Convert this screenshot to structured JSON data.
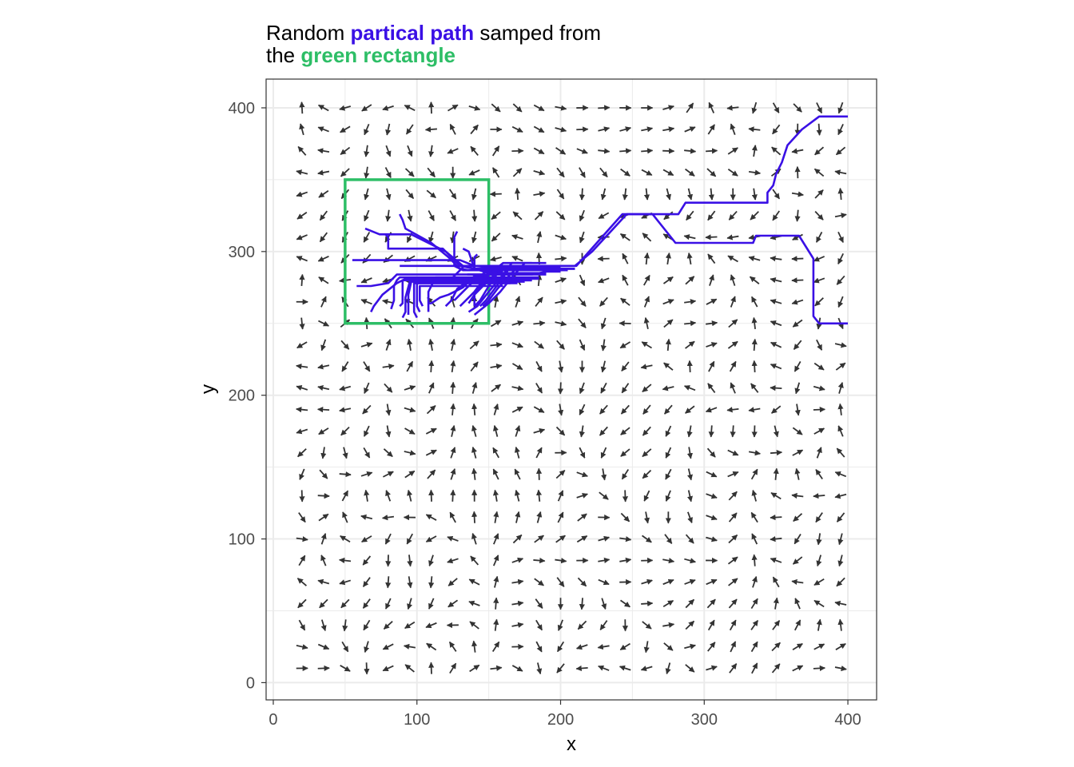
{
  "title": {
    "line1_prefix": "Random ",
    "line1_highlight": "partical path",
    "line1_suffix": " samped from",
    "line2_prefix": "the ",
    "line2_highlight": "green rectangle"
  },
  "colors": {
    "path": "#3A10E5",
    "rectangle": "#2DBE66",
    "arrow": "#333333",
    "grid": "#EBEBEB",
    "panel_border": "#333333"
  },
  "chart_data": {
    "type": "quiver with paths",
    "xlabel": "x",
    "ylabel": "y",
    "xlim": [
      -5,
      420
    ],
    "ylim": [
      -12,
      420
    ],
    "xticks": [
      0,
      100,
      200,
      300,
      400
    ],
    "yticks": [
      0,
      100,
      200,
      300,
      400
    ],
    "grid": true,
    "arrow_field": {
      "x_start": 20,
      "x_step": 15,
      "nx": 26,
      "y_start": 10,
      "y_step": 15,
      "ny": 27,
      "arrow_length": 8
    },
    "rectangle": {
      "xmin": 50,
      "xmax": 150,
      "ymin": 250,
      "ymax": 350
    },
    "paths": [
      [
        [
          400,
          394
        ],
        [
          380,
          394
        ],
        [
          368,
          385
        ],
        [
          358,
          374
        ],
        [
          354,
          362
        ],
        [
          350,
          354
        ],
        [
          348,
          346
        ],
        [
          344,
          341
        ],
        [
          344,
          334
        ],
        [
          320,
          334
        ],
        [
          294,
          334
        ],
        [
          287,
          334
        ],
        [
          282,
          326
        ],
        [
          250,
          326
        ],
        [
          243,
          326
        ],
        [
          211,
          290
        ],
        [
          150,
          290
        ],
        [
          133,
          290
        ],
        [
          125,
          282
        ],
        [
          113,
          282
        ],
        [
          108,
          272
        ],
        [
          108,
          260
        ],
        [
          108,
          258
        ]
      ],
      [
        [
          400,
          250
        ],
        [
          380,
          250
        ],
        [
          376,
          255
        ],
        [
          376,
          295
        ],
        [
          366,
          311
        ],
        [
          336,
          311
        ],
        [
          334,
          306
        ],
        [
          280,
          306
        ],
        [
          264,
          326
        ],
        [
          246,
          326
        ],
        [
          222,
          300
        ],
        [
          210,
          290
        ],
        [
          160,
          290
        ],
        [
          128,
          290
        ],
        [
          100,
          290
        ],
        [
          88,
          290
        ]
      ],
      [
        [
          210,
          288
        ],
        [
          180,
          288
        ],
        [
          140,
          288
        ],
        [
          130,
          290
        ],
        [
          118,
          302
        ],
        [
          102,
          302
        ],
        [
          90,
          302
        ],
        [
          80,
          302
        ],
        [
          80,
          310
        ],
        [
          78,
          312
        ]
      ],
      [
        [
          210,
          288
        ],
        [
          170,
          288
        ],
        [
          140,
          288
        ],
        [
          132,
          290
        ],
        [
          120,
          300
        ],
        [
          96,
          312
        ],
        [
          74,
          312
        ],
        [
          64,
          316
        ]
      ],
      [
        [
          205,
          287
        ],
        [
          160,
          287
        ],
        [
          136,
          287
        ],
        [
          130,
          288
        ],
        [
          122,
          296
        ],
        [
          110,
          306
        ],
        [
          92,
          316
        ],
        [
          90,
          322
        ],
        [
          88,
          326
        ]
      ],
      [
        [
          200,
          287
        ],
        [
          150,
          287
        ],
        [
          132,
          287
        ],
        [
          126,
          290
        ],
        [
          126,
          310
        ],
        [
          128,
          314
        ]
      ],
      [
        [
          200,
          287
        ],
        [
          160,
          287
        ],
        [
          140,
          288
        ],
        [
          136,
          300
        ],
        [
          132,
          302
        ]
      ],
      [
        [
          190,
          285
        ],
        [
          150,
          285
        ],
        [
          140,
          288
        ],
        [
          140,
          296
        ],
        [
          142,
          298
        ]
      ],
      [
        [
          200,
          289
        ],
        [
          150,
          289
        ],
        [
          140,
          290
        ],
        [
          130,
          294
        ],
        [
          90,
          294
        ],
        [
          55,
          294
        ]
      ],
      [
        [
          190,
          284
        ],
        [
          130,
          284
        ],
        [
          102,
          284
        ],
        [
          86,
          284
        ],
        [
          80,
          278
        ],
        [
          68,
          276
        ],
        [
          58,
          276
        ]
      ],
      [
        [
          185,
          282
        ],
        [
          150,
          282
        ],
        [
          132,
          282
        ],
        [
          102,
          282
        ],
        [
          88,
          282
        ],
        [
          86,
          280
        ],
        [
          84,
          276
        ],
        [
          84,
          266
        ],
        [
          82,
          260
        ]
      ],
      [
        [
          185,
          281
        ],
        [
          140,
          281
        ],
        [
          110,
          281
        ],
        [
          92,
          281
        ],
        [
          86,
          278
        ],
        [
          76,
          270
        ],
        [
          70,
          262
        ],
        [
          68,
          258
        ]
      ],
      [
        [
          180,
          280
        ],
        [
          140,
          280
        ],
        [
          100,
          280
        ],
        [
          90,
          280
        ],
        [
          90,
          272
        ],
        [
          90,
          264
        ],
        [
          88,
          262
        ]
      ],
      [
        [
          180,
          280
        ],
        [
          140,
          280
        ],
        [
          110,
          280
        ],
        [
          95,
          279
        ],
        [
          92,
          268
        ],
        [
          92,
          258
        ],
        [
          90,
          254
        ]
      ],
      [
        [
          175,
          279
        ],
        [
          140,
          279
        ],
        [
          120,
          279
        ],
        [
          96,
          279
        ],
        [
          94,
          270
        ],
        [
          94,
          260
        ],
        [
          94,
          256
        ]
      ],
      [
        [
          170,
          278
        ],
        [
          140,
          278
        ],
        [
          122,
          278
        ],
        [
          98,
          278
        ],
        [
          98,
          268
        ],
        [
          98,
          258
        ],
        [
          100,
          254
        ]
      ],
      [
        [
          165,
          278
        ],
        [
          135,
          278
        ],
        [
          110,
          278
        ],
        [
          100,
          278
        ],
        [
          100,
          270
        ],
        [
          100,
          262
        ],
        [
          102,
          258
        ]
      ],
      [
        [
          160,
          276
        ],
        [
          130,
          276
        ],
        [
          110,
          276
        ],
        [
          102,
          276
        ],
        [
          102,
          266
        ],
        [
          104,
          262
        ]
      ],
      [
        [
          150,
          283
        ],
        [
          140,
          283
        ],
        [
          132,
          275
        ],
        [
          122,
          270
        ],
        [
          116,
          268
        ],
        [
          110,
          264
        ],
        [
          108,
          264
        ]
      ],
      [
        [
          155,
          282
        ],
        [
          150,
          282
        ],
        [
          136,
          280
        ],
        [
          128,
          274
        ],
        [
          124,
          266
        ],
        [
          120,
          262
        ]
      ],
      [
        [
          160,
          286
        ],
        [
          148,
          286
        ],
        [
          140,
          280
        ],
        [
          132,
          272
        ],
        [
          126,
          266
        ]
      ],
      [
        [
          165,
          288
        ],
        [
          152,
          288
        ],
        [
          146,
          280
        ],
        [
          140,
          272
        ],
        [
          134,
          266
        ],
        [
          130,
          262
        ]
      ],
      [
        [
          170,
          290
        ],
        [
          160,
          290
        ],
        [
          154,
          282
        ],
        [
          150,
          276
        ],
        [
          144,
          266
        ],
        [
          140,
          262
        ]
      ],
      [
        [
          175,
          292
        ],
        [
          160,
          292
        ],
        [
          150,
          284
        ],
        [
          146,
          278
        ],
        [
          140,
          270
        ],
        [
          136,
          264
        ]
      ],
      [
        [
          180,
          290
        ],
        [
          160,
          290
        ],
        [
          150,
          280
        ],
        [
          146,
          276
        ],
        [
          140,
          270
        ],
        [
          140,
          262
        ]
      ],
      [
        [
          175,
          288
        ],
        [
          164,
          288
        ],
        [
          160,
          282
        ],
        [
          154,
          274
        ],
        [
          148,
          266
        ],
        [
          144,
          262
        ]
      ],
      [
        [
          185,
          289
        ],
        [
          170,
          289
        ],
        [
          164,
          283
        ],
        [
          156,
          274
        ],
        [
          150,
          266
        ],
        [
          146,
          262
        ]
      ],
      [
        [
          180,
          292
        ],
        [
          166,
          292
        ],
        [
          160,
          284
        ],
        [
          150,
          272
        ],
        [
          142,
          262
        ],
        [
          136,
          258
        ]
      ],
      [
        [
          190,
          292
        ],
        [
          175,
          292
        ],
        [
          166,
          282
        ],
        [
          158,
          272
        ],
        [
          150,
          264
        ],
        [
          140,
          256
        ]
      ],
      [
        [
          200,
          286
        ],
        [
          190,
          286
        ],
        [
          180,
          284
        ],
        [
          170,
          284
        ],
        [
          150,
          284
        ],
        [
          135,
          284
        ]
      ]
    ]
  }
}
